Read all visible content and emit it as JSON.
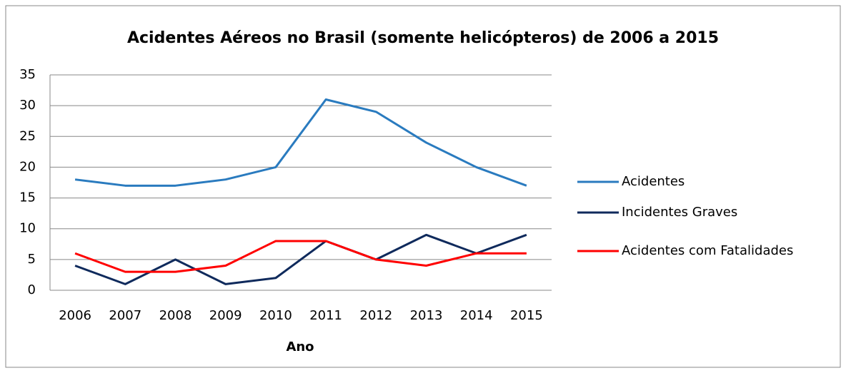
{
  "chart_data": {
    "type": "line",
    "title": "Acidentes Aéreos no Brasil (somente helicópteros) de 2006 a 2015",
    "x_label": "Ano",
    "categories": [
      "2006",
      "2007",
      "2008",
      "2009",
      "2010",
      "2011",
      "2012",
      "2013",
      "2014",
      "2015"
    ],
    "series": [
      {
        "name": "Acidentes",
        "color": "#2a7bbf",
        "values": [
          18,
          17,
          17,
          18,
          20,
          31,
          29,
          24,
          20,
          17
        ]
      },
      {
        "name": "Incidentes Graves",
        "color": "#0f2a5c",
        "values": [
          4,
          1,
          5,
          1,
          2,
          8,
          5,
          9,
          6,
          9
        ]
      },
      {
        "name": "Acidentes com Fatalidades",
        "color": "#ff0000",
        "values": [
          6,
          3,
          3,
          4,
          8,
          8,
          5,
          4,
          6,
          6
        ]
      }
    ],
    "ylim": [
      0,
      35
    ],
    "yticks": [
      0,
      5,
      10,
      15,
      20,
      25,
      30,
      35
    ],
    "grid": true,
    "legend": "right"
  }
}
